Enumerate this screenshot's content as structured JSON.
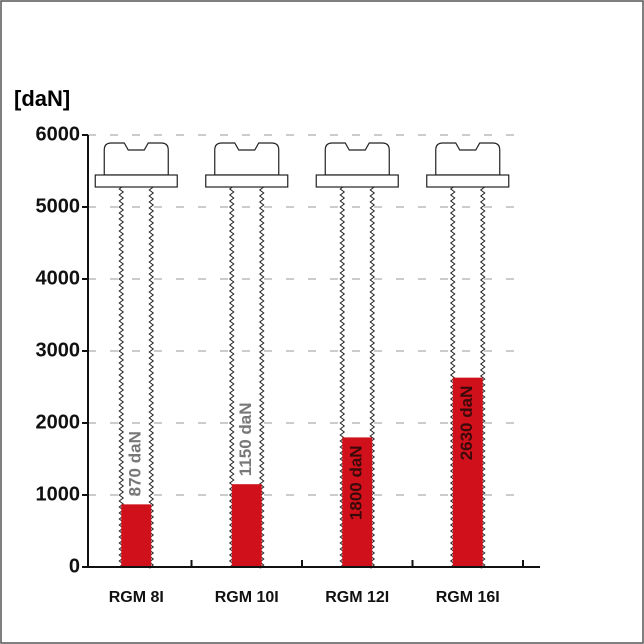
{
  "chart_data": {
    "type": "bar",
    "y_label": "[daN]",
    "categories": [
      "RGM 8I",
      "RGM 10I",
      "RGM 12I",
      "RGM 16I"
    ],
    "values": [
      870,
      1150,
      1800,
      2630
    ],
    "value_labels": [
      "870 daN",
      "1150 daN",
      "1800 daN",
      "2630 daN"
    ],
    "color": "#d0101a",
    "ylim": [
      0,
      6000
    ],
    "yticks": [
      0,
      1000,
      2000,
      3000,
      4000,
      5000,
      6000
    ],
    "grid": true
  }
}
